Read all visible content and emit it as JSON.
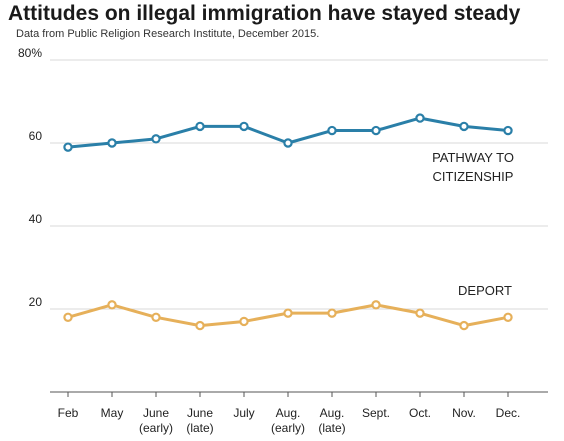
{
  "header": {
    "title": "Attitudes on illegal immigration have stayed steady",
    "subtitle": "Data from Public Religion Research Institute, December 2015."
  },
  "colors": {
    "pathway": "#2a7fa8",
    "deport": "#e6b05a",
    "grid": "#d9d9d9",
    "axis": "#555555",
    "text": "#222222"
  },
  "chart_data": {
    "type": "line",
    "title": "Attitudes on illegal immigration have stayed steady",
    "subtitle": "Data from Public Religion Research Institute, December 2015.",
    "categories": [
      [
        "Feb"
      ],
      [
        "May"
      ],
      [
        "June",
        "(early)"
      ],
      [
        "June",
        "(late)"
      ],
      [
        "July"
      ],
      [
        "Aug.",
        "(early)"
      ],
      [
        "Aug.",
        "(late)"
      ],
      [
        "Sept."
      ],
      [
        "Oct."
      ],
      [
        "Nov."
      ],
      [
        "Dec."
      ]
    ],
    "ylim": [
      0,
      80
    ],
    "yticks": [
      {
        "value": 80,
        "label": "80%"
      },
      {
        "value": 60,
        "label": "60"
      },
      {
        "value": 40,
        "label": "40"
      },
      {
        "value": 20,
        "label": "20"
      }
    ],
    "grid": true,
    "series": [
      {
        "key": "pathway",
        "name_lines": [
          "PATHWAY TO",
          "CITIZENSHIP"
        ],
        "values": [
          59,
          60,
          61,
          64,
          64,
          60,
          63,
          63,
          66,
          64,
          63
        ]
      },
      {
        "key": "deport",
        "name_lines": [
          "DEPORT"
        ],
        "values": [
          18,
          21,
          18,
          16,
          17,
          19,
          19,
          21,
          19,
          16,
          18
        ]
      }
    ]
  }
}
